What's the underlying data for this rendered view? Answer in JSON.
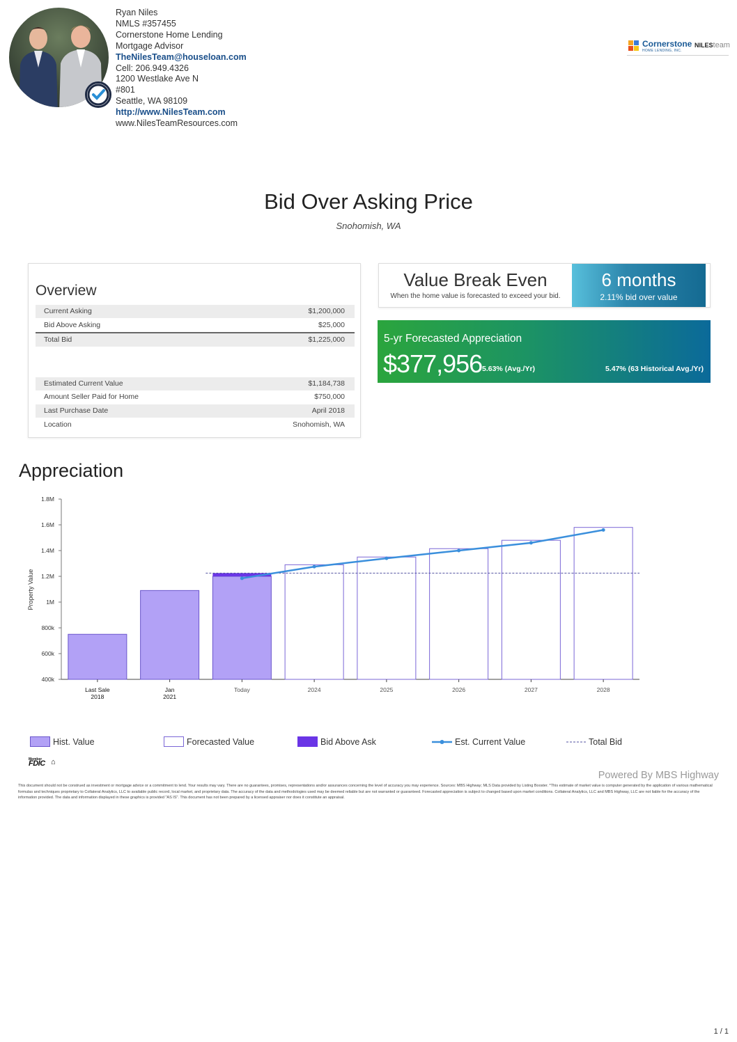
{
  "agent": {
    "name": "Ryan Niles",
    "nmls": "NMLS #357455",
    "company": "Cornerstone Home Lending",
    "role": "Mortgage Advisor",
    "email": "TheNilesTeam@houseloan.com",
    "cell": "Cell: 206.949.4326",
    "address1": "1200 Westlake Ave N",
    "address2": "#801",
    "address3": "Seattle,  WA  98109",
    "website": "http://www.NilesTeam.com",
    "resources": "www.NilesTeamResources.com"
  },
  "logo": {
    "brand": "Cornerstone",
    "sub": "HOME LENDING, INC.",
    "team_bold": "NILES",
    "team_light": "team"
  },
  "page": {
    "title": "Bid Over Asking Price",
    "location": "Snohomish, WA"
  },
  "overview": {
    "heading": "Overview",
    "rows_top": [
      {
        "label": "Current Asking",
        "value": "$1,200,000"
      },
      {
        "label": "Bid Above Asking",
        "value": "$25,000"
      },
      {
        "label": "Total Bid",
        "value": "$1,225,000"
      }
    ],
    "rows_bottom": [
      {
        "label": "Estimated Current Value",
        "value": "$1,184,738"
      },
      {
        "label": "Amount Seller Paid for Home",
        "value": "$750,000"
      },
      {
        "label": "Last Purchase Date",
        "value": "April 2018"
      },
      {
        "label": "Location",
        "value": "Snohomish, WA"
      }
    ]
  },
  "break_even": {
    "title": "Value Break Even",
    "subtitle": "When the home value is forecasted to exceed your bid.",
    "months": "6 months",
    "pct": "2.11% bid over value"
  },
  "forecast": {
    "label": "5-yr Forecasted Appreciation",
    "value": "$377,956",
    "avg": "5.63% (Avg./Yr)",
    "historical": "5.47% (63 Historical Avg./Yr)"
  },
  "appreciation": {
    "heading": "Appreciation"
  },
  "chart_data": {
    "type": "bar",
    "ylabel": "Property Value",
    "ylim": [
      400000,
      1800000
    ],
    "yticks": [
      {
        "v": 400000,
        "label": "400k"
      },
      {
        "v": 600000,
        "label": "600k"
      },
      {
        "v": 800000,
        "label": "800k"
      },
      {
        "v": 1000000,
        "label": "1M"
      },
      {
        "v": 1200000,
        "label": "1.2M"
      },
      {
        "v": 1400000,
        "label": "1.4M"
      },
      {
        "v": 1600000,
        "label": "1.6M"
      },
      {
        "v": 1800000,
        "label": "1.8M"
      }
    ],
    "categories": [
      {
        "line1": "Last Sale",
        "line2": "2018"
      },
      {
        "line1": "Jan",
        "line2": "2021"
      },
      {
        "line1": "Today",
        "line2": ""
      },
      {
        "line1": "2024",
        "line2": ""
      },
      {
        "line1": "2025",
        "line2": ""
      },
      {
        "line1": "2026",
        "line2": ""
      },
      {
        "line1": "2027",
        "line2": ""
      },
      {
        "line1": "2028",
        "line2": ""
      }
    ],
    "hist_value": [
      750000,
      1090000,
      1200000,
      null,
      null,
      null,
      null,
      null
    ],
    "forecasted_value": [
      null,
      null,
      null,
      1290000,
      1350000,
      1415000,
      1480000,
      1580000
    ],
    "bid_above_ask": [
      null,
      null,
      25000,
      null,
      null,
      null,
      null,
      null
    ],
    "est_current_value": [
      null,
      null,
      1184738,
      1275000,
      1340000,
      1400000,
      1460000,
      1560000
    ],
    "total_bid": 1225000,
    "colors": {
      "hist": "#b2a1f6",
      "hist_edge": "#6a55cc",
      "forecast_edge": "#7a66d6",
      "bid": "#6a35e6",
      "line": "#3a8fdc",
      "dashed": "#5050a0"
    }
  },
  "legend": [
    {
      "label": "Hist. Value"
    },
    {
      "label": "Forecasted Value"
    },
    {
      "label": "Bid Above Ask"
    },
    {
      "label": "Est. Current Value"
    },
    {
      "label": "Total Bid"
    }
  ],
  "fdic": {
    "member": "Member",
    "fdic": "FDIC",
    "house": "⌂"
  },
  "powered": "Powered By MBS Highway",
  "disclaimer": "This document should not be construed as investment or mortgage advice or a commitment to lend. Your results may vary. There are no guarantees, promises, representations and/or assurances concerning the level of accuracy you may experience. Sources: MBS Highway; MLS Data provided by Listing Booster. *This estimate of market value is computer generated by the application of various mathematical formulas and techniques proprietary to Collateral Analytics, LLC to available public record, local market, and proprietary data. The accuracy of the data and methodologies used may be deemed reliable but are not warranted or guaranteed. Forecasted appreciation is subject to changed based upon market conditions. Collateral Analytics, LLC and MBS Highway, LLC are not liable for the accuracy of the information provided. The data and information displayed in these graphics is provided \"AS IS\". This document has not been prepared by a licensed appraiser nor does it constitute an appraisal.",
  "page_number": "1 / 1"
}
